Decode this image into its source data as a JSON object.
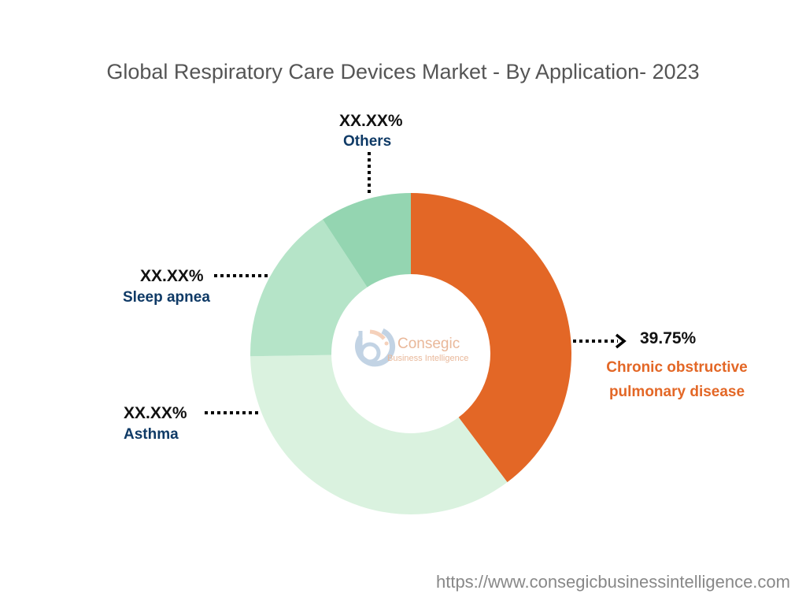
{
  "chart_data": {
    "type": "donut",
    "title": "Global Respiratory Care Devices Market - By Application- 2023",
    "start_angle": "top, clockwise",
    "slices": [
      {
        "name": "Chronic obstructive pulmonary disease",
        "label": "39.75%",
        "value": 39.75,
        "color": "#E36726",
        "label_color": "#E36726"
      },
      {
        "name": "Asthma",
        "label": "XX.XX%",
        "value": 35.0,
        "color": "#DAF2DF",
        "label_color": "#0F3A66"
      },
      {
        "name": "Sleep apnea",
        "label": "XX.XX%",
        "value": 16.0,
        "color": "#B5E4C8",
        "label_color": "#0F3A66"
      },
      {
        "name": "Others",
        "label": "XX.XX%",
        "value": 9.25,
        "color": "#94D5B1",
        "label_color": "#0F3A66"
      }
    ]
  },
  "watermark": {
    "line1": "Consegic",
    "line2": "Business Intelligence"
  },
  "footer_url": "https://www.consegicbusinessintelligence.com"
}
